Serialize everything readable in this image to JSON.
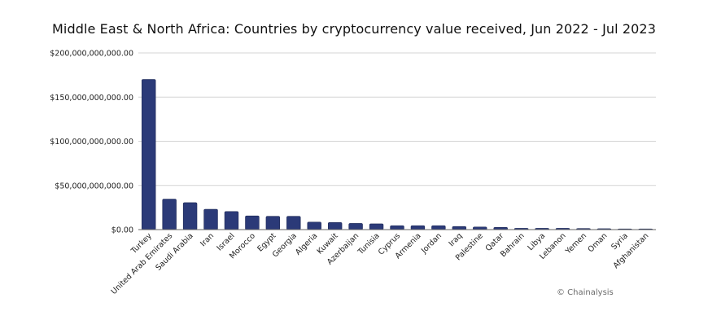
{
  "chart_data": {
    "type": "bar",
    "title": "Middle East & North Africa: Countries by cryptocurrency value received, Jun 2022 - Jul 2023",
    "xlabel": "",
    "ylabel": "",
    "ylim": [
      0,
      200000000000
    ],
    "yticks": [
      0,
      50000000000,
      100000000000,
      150000000000,
      200000000000
    ],
    "ytick_labels": [
      "$0.00",
      "$50,000,000,000.00",
      "$100,000,000,000.00",
      "$150,000,000,000.00",
      "$200,000,000,000.00"
    ],
    "grid": true,
    "legend": "none",
    "bar_color": "#2b3a78",
    "categories": [
      "Turkey",
      "United Arab Emirates",
      "Saudi Arabia",
      "Iran",
      "Israel",
      "Morocco",
      "Egypt",
      "Georgia",
      "Algeria",
      "Kuwait",
      "Azerbaijan",
      "Tunisia",
      "Cyprus",
      "Armenia",
      "Jordan",
      "Iraq",
      "Palestine",
      "Qatar",
      "Bahrain",
      "Libya",
      "Lebanon",
      "Yemen",
      "Oman",
      "Syria",
      "Afghanistan"
    ],
    "values": [
      170000000000,
      34500000000,
      30500000000,
      23000000000,
      20500000000,
      15500000000,
      15000000000,
      15000000000,
      8500000000,
      8000000000,
      7000000000,
      6500000000,
      4500000000,
      4500000000,
      4500000000,
      3500000000,
      3000000000,
      2500000000,
      1500000000,
      1500000000,
      1500000000,
      1200000000,
      1000000000,
      200000000,
      100000000
    ]
  },
  "watermark": "© Chainalysis"
}
